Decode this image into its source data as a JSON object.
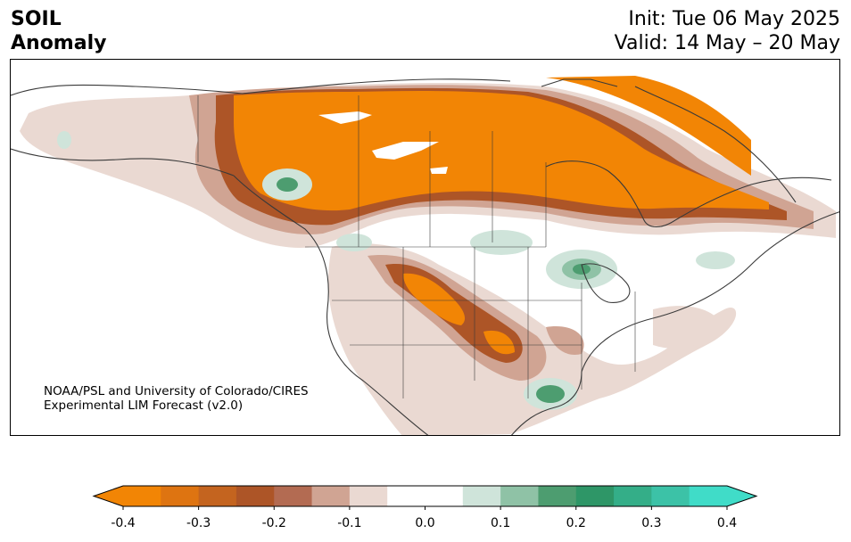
{
  "title": {
    "left_line1": "SOIL",
    "left_line2": "Anomaly",
    "right_line1": "Init: Tue 06 May 2025",
    "right_line2": "Valid: 14 May – 20 May"
  },
  "credit": {
    "line1": "NOAA/PSL and University of Colorado/CIRES",
    "line2": "Experimental LIM Forecast (v2.0)"
  },
  "colorbar": {
    "ticks": [
      "-0.4",
      "-0.3",
      "-0.2",
      "-0.1",
      "0.0",
      "0.1",
      "0.2",
      "0.3",
      "0.4"
    ],
    "colors": {
      "under": "#f28505",
      "bins": [
        "#f28505",
        "#de7411",
        "#c4641f",
        "#ad5527",
        "#b36b52",
        "#d0a493",
        "#ead9d2",
        "#ffffff",
        "#ffffff",
        "#cfe4da",
        "#8fc2a6",
        "#4d9d70",
        "#2e9667",
        "#34ae88",
        "#3cc2a7",
        "#40dcc8"
      ],
      "over": "#40dcc8",
      "land_outline": "#3a3a3a"
    }
  }
}
